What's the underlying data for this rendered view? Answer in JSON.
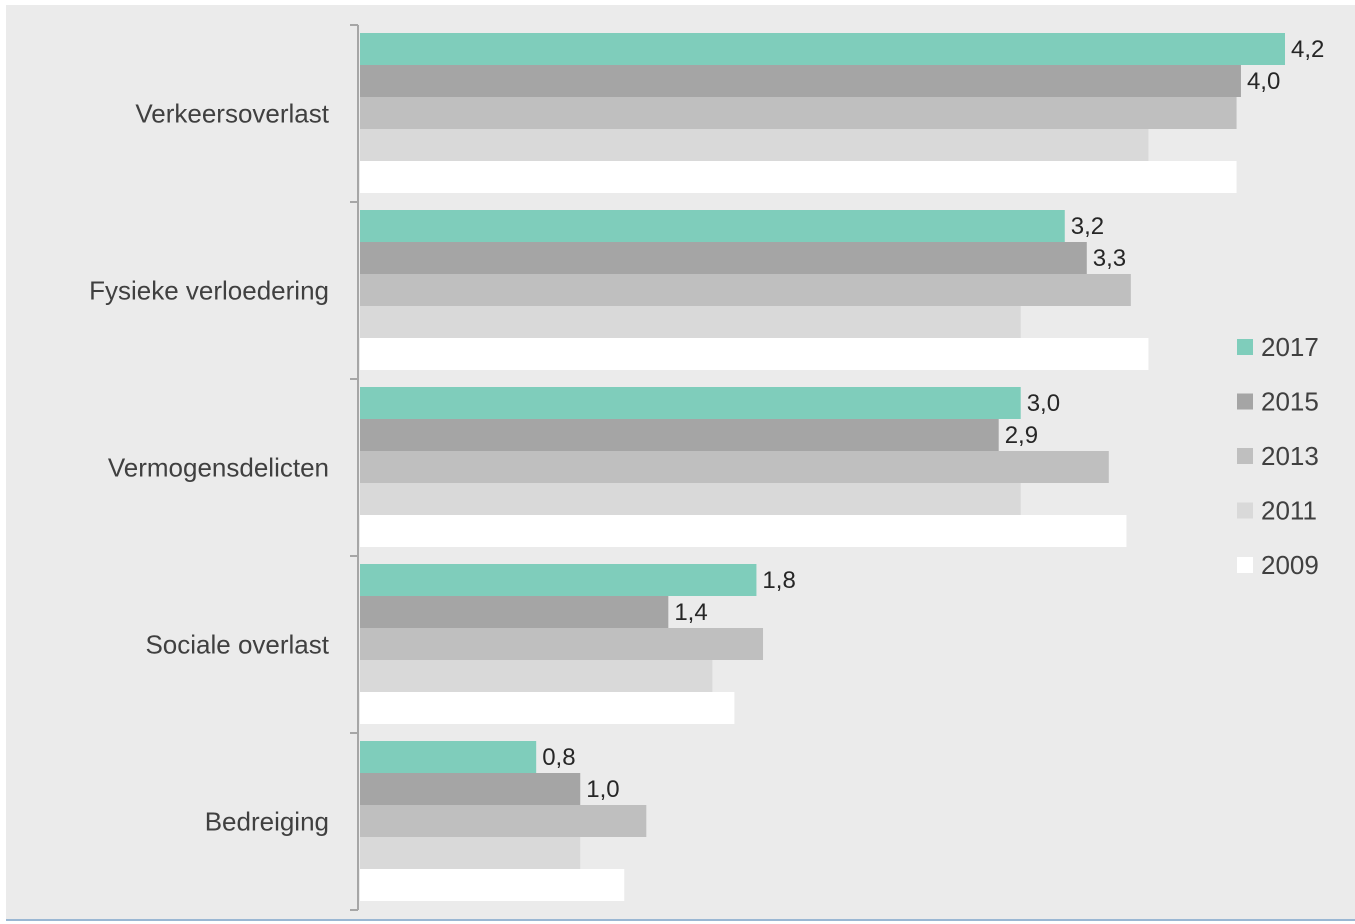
{
  "chart_data": {
    "type": "bar",
    "orientation": "horizontal",
    "categories": [
      "Verkeersoverlast",
      "Fysieke verloedering",
      "Vermogensdelicten",
      "Sociale overlast",
      "Bedreiging"
    ],
    "series": [
      {
        "name": "2017",
        "values": [
          4.2,
          3.2,
          3.0,
          1.8,
          0.8
        ],
        "labels": [
          "4,2",
          "3,2",
          "3,0",
          "1,8",
          "0,8"
        ],
        "color": "#7fcdbb"
      },
      {
        "name": "2015",
        "values": [
          4.0,
          3.3,
          2.9,
          1.4,
          1.0
        ],
        "labels": [
          "4,0",
          "3,3",
          "2,9",
          "1,4",
          "1,0"
        ],
        "color": "#a5a5a5"
      },
      {
        "name": "2013",
        "values": [
          3.98,
          3.5,
          3.4,
          1.83,
          1.3
        ],
        "color": "#bfbfbf"
      },
      {
        "name": "2011",
        "values": [
          3.58,
          3.0,
          3.0,
          1.6,
          1.0
        ],
        "color": "#d9d9d9"
      },
      {
        "name": "2009",
        "values": [
          3.98,
          3.58,
          3.48,
          1.7,
          1.2
        ],
        "color": "#ffffff"
      }
    ],
    "xlim": [
      0,
      4.2
    ],
    "grid": false,
    "legend_position": "right",
    "background": "#ebebeb"
  }
}
